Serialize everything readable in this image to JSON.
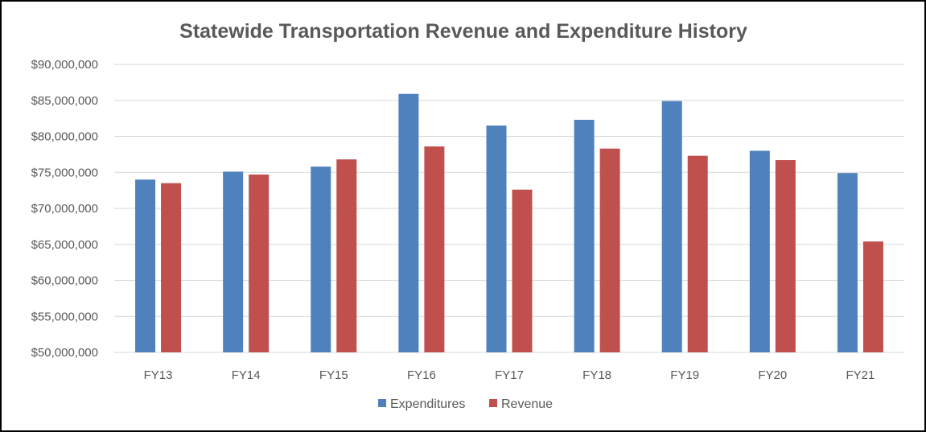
{
  "chart_data": {
    "type": "bar",
    "title": "Statewide Transportation Revenue and Expenditure History",
    "categories": [
      "FY13",
      "FY14",
      "FY15",
      "FY16",
      "FY17",
      "FY18",
      "FY19",
      "FY20",
      "FY21"
    ],
    "series": [
      {
        "name": "Expenditures",
        "color": "#4f81bd",
        "values": [
          74000000,
          75100000,
          75800000,
          85900000,
          81500000,
          82300000,
          84900000,
          78000000,
          74900000
        ]
      },
      {
        "name": "Revenue",
        "color": "#c0504d",
        "values": [
          73500000,
          74700000,
          76800000,
          78600000,
          72600000,
          78300000,
          77300000,
          76700000,
          65400000
        ]
      }
    ],
    "y_ticks": [
      "$50,000,000",
      "$55,000,000",
      "$60,000,000",
      "$65,000,000",
      "$70,000,000",
      "$75,000,000",
      "$80,000,000",
      "$85,000,000",
      "$90,000,000"
    ],
    "ylim": [
      50000000,
      90000000
    ],
    "grid": true,
    "legend_position": "bottom",
    "xlabel": "",
    "ylabel": ""
  }
}
